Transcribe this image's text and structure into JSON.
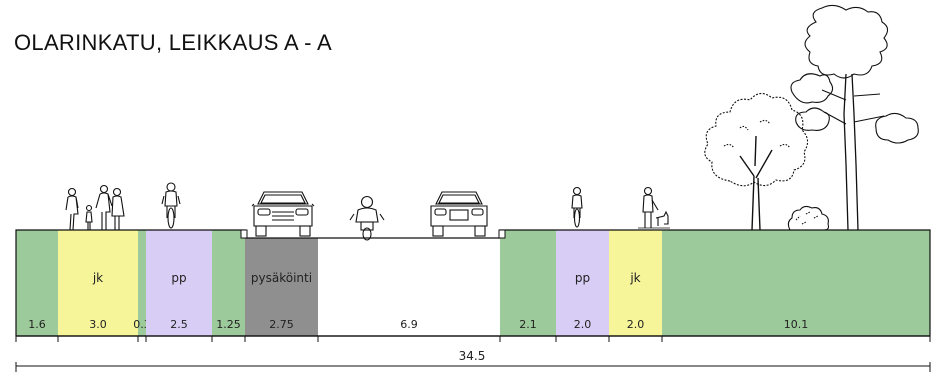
{
  "title": "OLARINKATU, LEIKKAUS A - A",
  "colors": {
    "green": "#9dca9a",
    "yellow": "#f6f59a",
    "purple": "#d7cdf5",
    "gray": "#8f8f8f",
    "white": "#ffffff"
  },
  "segments": [
    {
      "label": "",
      "width": "1.6",
      "fill": "green"
    },
    {
      "label": "jk",
      "width": "3.0",
      "fill": "yellow"
    },
    {
      "label": "",
      "width": "0.3",
      "fill": "green"
    },
    {
      "label": "pp",
      "width": "2.5",
      "fill": "purple"
    },
    {
      "label": "",
      "width": "1.25",
      "fill": "green"
    },
    {
      "label": "pysäköinti",
      "width": "2.75",
      "fill": "gray"
    },
    {
      "label": "",
      "width": "6.9",
      "fill": "white"
    },
    {
      "label": "",
      "width": "2.1",
      "fill": "green"
    },
    {
      "label": "pp",
      "width": "2.0",
      "fill": "purple"
    },
    {
      "label": "jk",
      "width": "2.0",
      "fill": "yellow"
    },
    {
      "label": "",
      "width": "10.1",
      "fill": "green"
    }
  ],
  "total_width": "34.5",
  "figures": [
    {
      "icon": "pedestrians-icon"
    },
    {
      "icon": "cyclist-icon"
    },
    {
      "icon": "parked-car-icon"
    },
    {
      "icon": "motorcycle-icon"
    },
    {
      "icon": "car-icon"
    },
    {
      "icon": "cyclist-icon"
    },
    {
      "icon": "pedestrian-with-dog-icon"
    },
    {
      "icon": "deciduous-tree-icon"
    },
    {
      "icon": "pine-tree-icon"
    },
    {
      "icon": "shrub-icon"
    }
  ]
}
